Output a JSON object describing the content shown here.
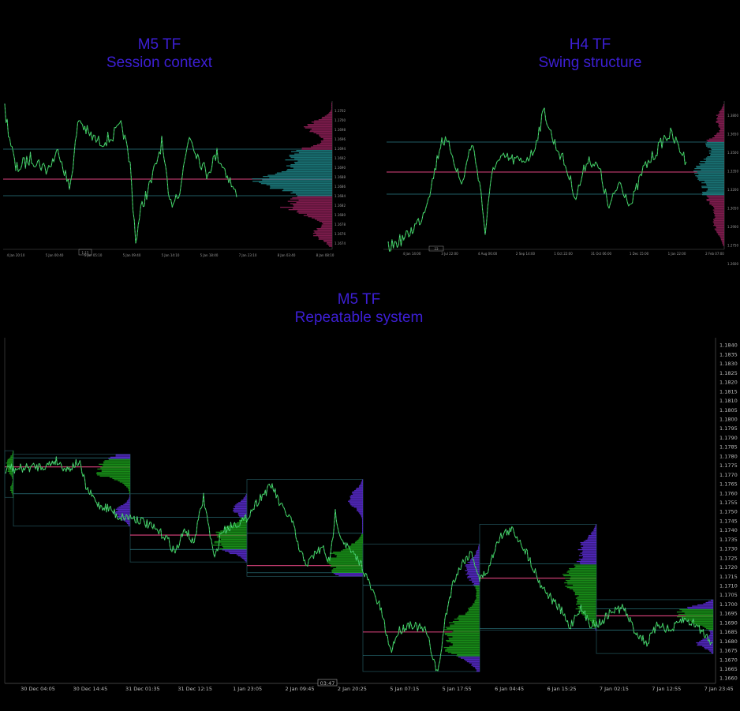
{
  "panels": {
    "top_left": {
      "line1": "M5 TF",
      "line2": "Session context"
    },
    "top_right": {
      "line1": "H4 TF",
      "line2": "Swing structure"
    },
    "bottom": {
      "line1": "M5 TF",
      "line2": "Repeatable system"
    }
  },
  "colors": {
    "background": "#000000",
    "title": "#3d1fd6",
    "price_up": "#2fbf4a",
    "price_down": "#9ad3e6",
    "poc_line": "#e0447f",
    "value_area_line": "#2d7d86",
    "profile_teal": "#1c7d80",
    "profile_magenta": "#8c1f55",
    "profile_green": "#1b9a1b",
    "profile_purple": "#5a2bd0",
    "box_outline": "#1f4a50",
    "axis_text": "#bdbdbd"
  },
  "chart_data": [
    {
      "type": "line",
      "title": "M5 TF Session context",
      "x_tick_labels": [
        "4 Jan 20:10",
        "5 Jan 00:40",
        "5 Jan 05:10",
        "5 Jan 09:40",
        "5 Jan 14:10",
        "5 Jan 18:40",
        "7 Jan 23:10",
        "8 Jan 03:40",
        "8 Jan 08:10"
      ],
      "y_tick_labels": [
        "1.1702",
        "1.1700",
        "1.1698",
        "1.1696",
        "1.1694",
        "1.1692",
        "1.1690",
        "1.1688",
        "1.1686",
        "1.1684",
        "1.1682",
        "1.1680",
        "1.1678",
        "1.1676",
        "1.1674"
      ],
      "x_marker": "1:15",
      "levels": {
        "poc": 1.1691,
        "vah": 1.1696,
        "val": 1.1686
      },
      "volume_profile": true
    },
    {
      "type": "line",
      "title": "H4 TF Swing structure",
      "x_tick_labels": [
        "4 Jan 14:00",
        "3 Jul 22:00",
        "4 Aug 06:00",
        "2 Sep 14:00",
        "1 Oct 22:00",
        "31 Oct 06:00",
        "1 Dec 15:00",
        "1 Jan 22:00",
        "2 Feb 07:00"
      ],
      "y_tick_labels": [
        "1.3800",
        "1.3650",
        "1.3500",
        "1.3350",
        "1.3200",
        "1.3050",
        "1.2900",
        "1.2750",
        "1.2600"
      ],
      "x_marker": "23",
      "levels": {
        "poc": 1.3499,
        "vah": 1.369,
        "val": 1.332
      },
      "volume_profile": true
    },
    {
      "type": "line",
      "title": "M5 TF Repeatable system",
      "x_tick_labels": [
        "30 Dec 04:05",
        "30 Dec 14:45",
        "31 Dec 01:35",
        "31 Dec 12:15",
        "1 Jan 23:05",
        "2 Jan 09:45",
        "2 Jan 20:25",
        "5 Jan 07:15",
        "5 Jan 17:55",
        "6 Jan 04:45",
        "6 Jan 15:25",
        "7 Jan 02:15",
        "7 Jan 12:55",
        "7 Jan 23:45"
      ],
      "y_tick_labels": [
        "1.1840",
        "1.1835",
        "1.1830",
        "1.1825",
        "1.1820",
        "1.1815",
        "1.1810",
        "1.1805",
        "1.1800",
        "1.1795",
        "1.1790",
        "1.1785",
        "1.1780",
        "1.1775",
        "1.1770",
        "1.1765",
        "1.1760",
        "1.1755",
        "1.1750",
        "1.1745",
        "1.1740",
        "1.1735",
        "1.1730",
        "1.1725",
        "1.1720",
        "1.1715",
        "1.1710",
        "1.1705",
        "1.1700",
        "1.1695",
        "1.1690",
        "1.1685",
        "1.1680",
        "1.1675",
        "1.1670",
        "1.1665",
        "1.1660"
      ],
      "x_marker": "03:47",
      "ylim": [
        1.1657,
        1.1843
      ],
      "sessions": [
        {
          "start": "29 Dec",
          "high": 1.1784,
          "low": 1.1758,
          "poc": 1.1775
        },
        {
          "start": "30 Dec",
          "high": 1.1782,
          "low": 1.1742,
          "poc": 1.1775,
          "vah": 1.178,
          "val": 1.176
        },
        {
          "start": "31 Dec",
          "high": 1.176,
          "low": 1.1722,
          "poc": 1.1737,
          "vah": 1.1747,
          "val": 1.1729
        },
        {
          "start": "1 Jan",
          "high": 1.1768,
          "low": 1.1714,
          "poc": 1.172,
          "vah": 1.1738,
          "val": 1.1716
        },
        {
          "start": "2 Jan",
          "high": 1.1732,
          "low": 1.1661,
          "poc": 1.1683,
          "vah": 1.1709,
          "val": 1.167
        },
        {
          "start": "5 Jan",
          "high": 1.1743,
          "low": 1.1684,
          "poc": 1.1713,
          "vah": 1.1721,
          "val": 1.1685
        },
        {
          "start": "6 Jan",
          "high": 1.1701,
          "low": 1.1671,
          "poc": 1.1692,
          "vah": 1.1696,
          "val": 1.1684
        }
      ]
    }
  ]
}
